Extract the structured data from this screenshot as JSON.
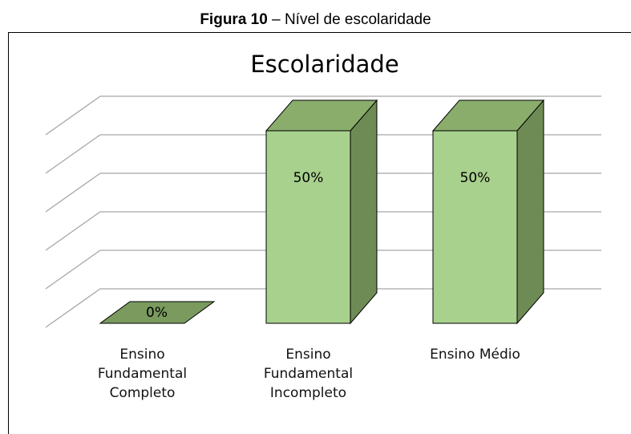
{
  "caption": {
    "label": "Figura 10",
    "text": "– Nível de escolaridade"
  },
  "chart_data": {
    "type": "bar3d",
    "title": "Escolaridade",
    "categories": [
      "Ensino Fundamental Completo",
      "Ensino Fundamental Incompleto",
      "Ensino Médio"
    ],
    "values": [
      0,
      50,
      50
    ],
    "value_labels": [
      "0%",
      "50%",
      "50%"
    ],
    "color": "#a9d18e",
    "ylim": [
      0,
      50
    ],
    "yticks": [
      0,
      10,
      20,
      30,
      40,
      50
    ],
    "grid": true
  }
}
